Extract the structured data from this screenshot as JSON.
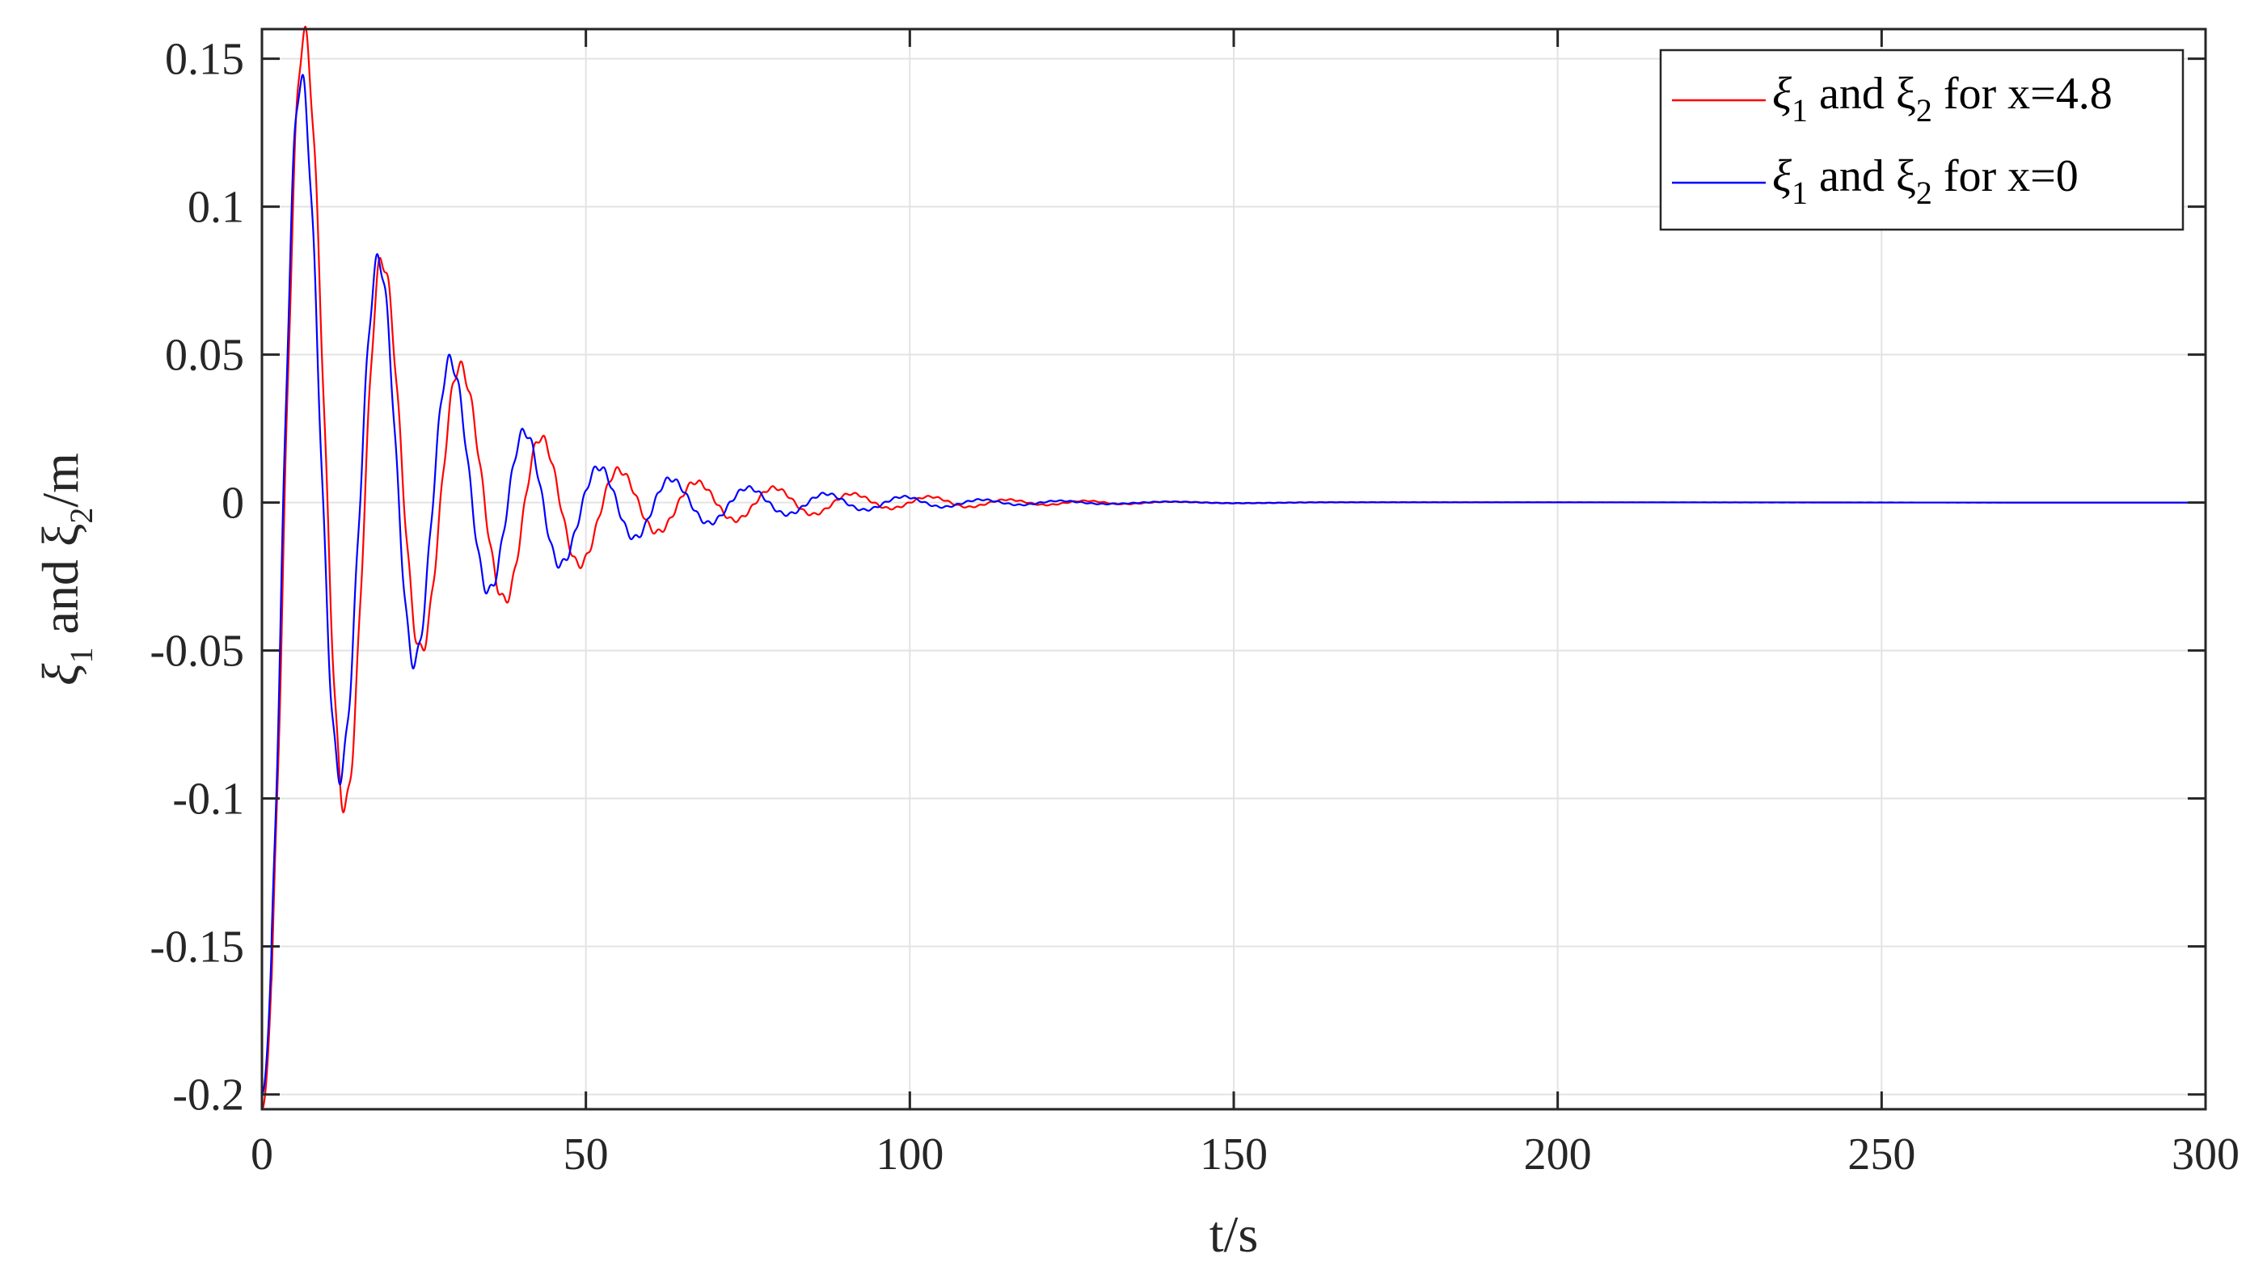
{
  "chart_data": {
    "type": "line",
    "xlabel": "t/s",
    "ylabel": {
      "p1": "ξ",
      "s1": "1",
      "p2": " and ξ",
      "s2": "2",
      "p3": "/m"
    },
    "xlim": [
      0,
      300
    ],
    "ylim": [
      -0.205,
      0.16
    ],
    "xticks": [
      0,
      50,
      100,
      150,
      200,
      250,
      300
    ],
    "xtick_labels": [
      "0",
      "50",
      "100",
      "150",
      "200",
      "250",
      "300"
    ],
    "yticks": [
      0.15,
      0.1,
      0.05,
      0,
      -0.05,
      -0.1,
      -0.15,
      -0.2
    ],
    "ytick_labels": [
      "0.15",
      "0.1",
      "0.05",
      "0",
      "-0.05",
      "-0.1",
      "-0.15",
      "-0.2"
    ],
    "grid": true,
    "legend_position": "top-right",
    "series": [
      {
        "name": "ξ1 and ξ2 for x=4.8",
        "legend": {
          "p1": "ξ",
          "s1": "1",
          "p2": " and ξ",
          "s2": "2",
          "p3": " for x=4.8"
        },
        "color": "#ff0000",
        "peaks": [
          [
            0,
            -0.205
          ],
          [
            6.5,
            0.158
          ],
          [
            12.8,
            -0.103
          ],
          [
            18.5,
            0.082
          ],
          [
            24.5,
            -0.05
          ],
          [
            30.5,
            0.046
          ],
          [
            37.5,
            -0.033
          ],
          [
            43,
            0.022
          ],
          [
            49,
            -0.021
          ],
          [
            55,
            0.011
          ],
          [
            61,
            -0.01
          ],
          [
            67,
            0.007
          ],
          [
            73,
            -0.006
          ],
          [
            79,
            0.005
          ],
          [
            85,
            -0.004
          ],
          [
            91,
            0.003
          ],
          [
            97,
            -0.002
          ],
          [
            103,
            0.002
          ],
          [
            109,
            -0.0015
          ],
          [
            115,
            0.001
          ],
          [
            121,
            -0.0008
          ],
          [
            127,
            0.0006
          ],
          [
            133,
            -0.0005
          ],
          [
            140,
            0.0003
          ],
          [
            150,
            -0.0002
          ],
          [
            165,
            0.0001
          ],
          [
            300,
            0
          ]
        ]
      },
      {
        "name": "ξ1 and ξ2 for x=0",
        "legend": {
          "p1": "ξ",
          "s1": "1",
          "p2": " and ξ",
          "s2": "2",
          "p3": " for x=0"
        },
        "color": "#0000ff",
        "peaks": [
          [
            0,
            -0.2
          ],
          [
            6,
            0.143
          ],
          [
            12,
            -0.092
          ],
          [
            18,
            0.082
          ],
          [
            23.5,
            -0.054
          ],
          [
            29,
            0.048
          ],
          [
            35,
            -0.03
          ],
          [
            40.5,
            0.024
          ],
          [
            46,
            -0.021
          ],
          [
            52,
            0.012
          ],
          [
            57.5,
            -0.012
          ],
          [
            63,
            0.008
          ],
          [
            69,
            -0.007
          ],
          [
            75,
            0.005
          ],
          [
            81,
            -0.004
          ],
          [
            87,
            0.003
          ],
          [
            93,
            -0.0025
          ],
          [
            99,
            0.002
          ],
          [
            105,
            -0.0015
          ],
          [
            111,
            0.001
          ],
          [
            117,
            -0.0008
          ],
          [
            123,
            0.0006
          ],
          [
            130,
            -0.0005
          ],
          [
            140,
            0.0003
          ],
          [
            150,
            -0.0002
          ],
          [
            165,
            0.0001
          ],
          [
            300,
            0
          ]
        ]
      }
    ]
  }
}
